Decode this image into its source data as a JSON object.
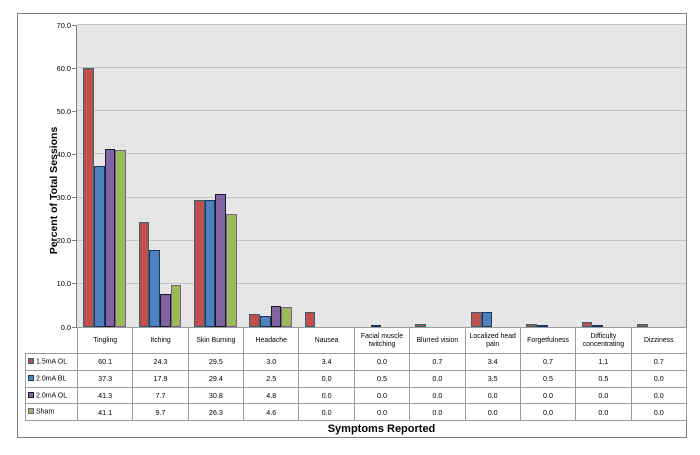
{
  "chart_data": {
    "type": "bar",
    "title": "",
    "xlabel": "Symptoms Reported",
    "ylabel": "Percent of Total Sessions",
    "ylim": [
      0,
      70
    ],
    "ytick_step": 10,
    "ytick_labels": [
      "0.0",
      "10.0",
      "20.0",
      "30.0",
      "40.0",
      "50.0",
      "60.0",
      "70.0"
    ],
    "grid": true,
    "legend_position": "table-left",
    "plot_bg": "#e6e6e6",
    "grid_color": "#c3c3c3",
    "axis_color": "#7f7f7f",
    "table_border_color": "#9c9c9c",
    "value_decimals": 1,
    "categories": [
      "Tingling",
      "Itching",
      "Skin Burning",
      "Headache",
      "Nausea",
      "Facial muscle twitching",
      "Blurred vision",
      "Localized head pain",
      "Forgetfulness",
      "Difficulty concentrating",
      "Dizziness"
    ],
    "series": [
      {
        "name": "1.5mA OL",
        "color": "#c0504d",
        "border_color": "#37606e",
        "values": [
          60.1,
          24.3,
          29.5,
          3.0,
          3.4,
          0.0,
          0.7,
          3.4,
          0.7,
          1.1,
          0.7
        ]
      },
      {
        "name": "2.0mA BL",
        "color": "#4f81bd",
        "border_color": "#17375e",
        "values": [
          37.3,
          17.9,
          29.4,
          2.5,
          0.0,
          0.5,
          0.0,
          3.5,
          0.5,
          0.5,
          0.0
        ]
      },
      {
        "name": "2.0mA OL",
        "color": "#8064a2",
        "border_color": "#1f1629",
        "values": [
          41.3,
          7.7,
          30.8,
          4.8,
          0.0,
          0.0,
          0.0,
          0.0,
          0.0,
          0.0,
          0.0
        ]
      },
      {
        "name": "Sham",
        "color": "#9bbb59",
        "border_color": "#7d5c94",
        "values": [
          41.1,
          9.7,
          26.3,
          4.6,
          0.0,
          0.0,
          0.0,
          0.0,
          0.0,
          0.0,
          0.0
        ]
      }
    ]
  }
}
